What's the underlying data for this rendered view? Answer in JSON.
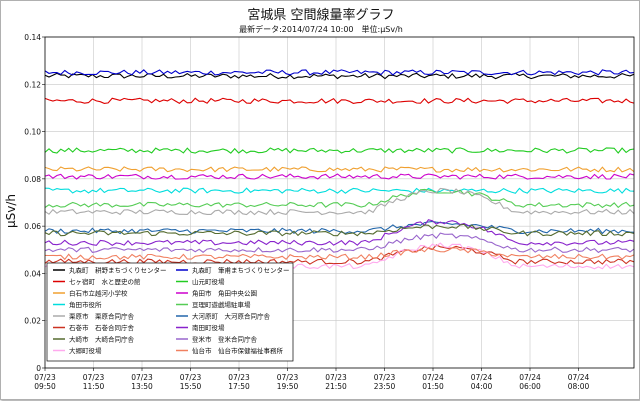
{
  "chart_data": {
    "type": "line",
    "title": "宮城県 空間線量率グラフ",
    "subtitle": "最新データ:2014/07/24 10:00　単位:μSv/h",
    "xlabel": "",
    "ylabel": "μSv/h",
    "ylim": [
      0,
      0.14
    ],
    "yticks": [
      "0",
      "0.02",
      "0.04",
      "0.06",
      "0.08",
      "0.10",
      "0.12",
      "0.14"
    ],
    "xticks": [
      {
        "date": "07/23",
        "time": "09:50"
      },
      {
        "date": "07/23",
        "time": "11:50"
      },
      {
        "date": "07/23",
        "time": "13:50"
      },
      {
        "date": "07/23",
        "time": "15:50"
      },
      {
        "date": "07/23",
        "time": "17:50"
      },
      {
        "date": "07/23",
        "time": "19:50"
      },
      {
        "date": "07/23",
        "time": "21:50"
      },
      {
        "date": "07/23",
        "time": "23:50"
      },
      {
        "date": "07/24",
        "time": "01:50"
      },
      {
        "date": "07/24",
        "time": "04:00"
      },
      {
        "date": "07/24",
        "time": "06:00"
      },
      {
        "date": "07/24",
        "time": "08:00"
      }
    ],
    "x_range": [
      "07/23 09:50",
      "07/24 10:00"
    ],
    "grid": true,
    "legend_placement": "bottom-left",
    "series": [
      {
        "name": "丸森町　耕野まちづくりセンター",
        "color": "#000000",
        "base": 0.1235
      },
      {
        "name": "丸森町　筆甫まちづくりセンター",
        "color": "#0000cc",
        "base": 0.125
      },
      {
        "name": "七ヶ宿町　水と歴史の館",
        "color": "#dd0000",
        "base": 0.113
      },
      {
        "name": "山元町役場",
        "color": "#22cc22",
        "base": 0.092
      },
      {
        "name": "白石市立越河小学校",
        "color": "#f0a030",
        "base": 0.084
      },
      {
        "name": "角田市　角田中央公園",
        "color": "#cc00cc",
        "base": 0.081
      },
      {
        "name": "角田市役所",
        "color": "#00dddd",
        "base": 0.075
      },
      {
        "name": "亘理町遊戯場駐車場",
        "color": "#55cc55",
        "base": 0.069
      },
      {
        "name": "栗原市　栗原合同庁舎",
        "color": "#aaaaaa",
        "base": 0.066
      },
      {
        "name": "大河原町　大河原合同庁舎",
        "color": "#2266aa",
        "base": 0.058
      },
      {
        "name": "石巻市　石巻合同庁舎",
        "color": "#cc3322",
        "base": 0.045
      },
      {
        "name": "南田町役場",
        "color": "#8822cc",
        "base": 0.053
      },
      {
        "name": "大崎市　大崎合同庁舎",
        "color": "#556b2f",
        "base": 0.057
      },
      {
        "name": "登米市　登米合同庁舎",
        "color": "#9966cc",
        "base": 0.05
      },
      {
        "name": "大郷町役場",
        "color": "#ffaaee",
        "base": 0.043
      },
      {
        "name": "仙台市　仙台市保健福祉事務所",
        "color": "#f08060",
        "base": 0.047
      }
    ]
  }
}
